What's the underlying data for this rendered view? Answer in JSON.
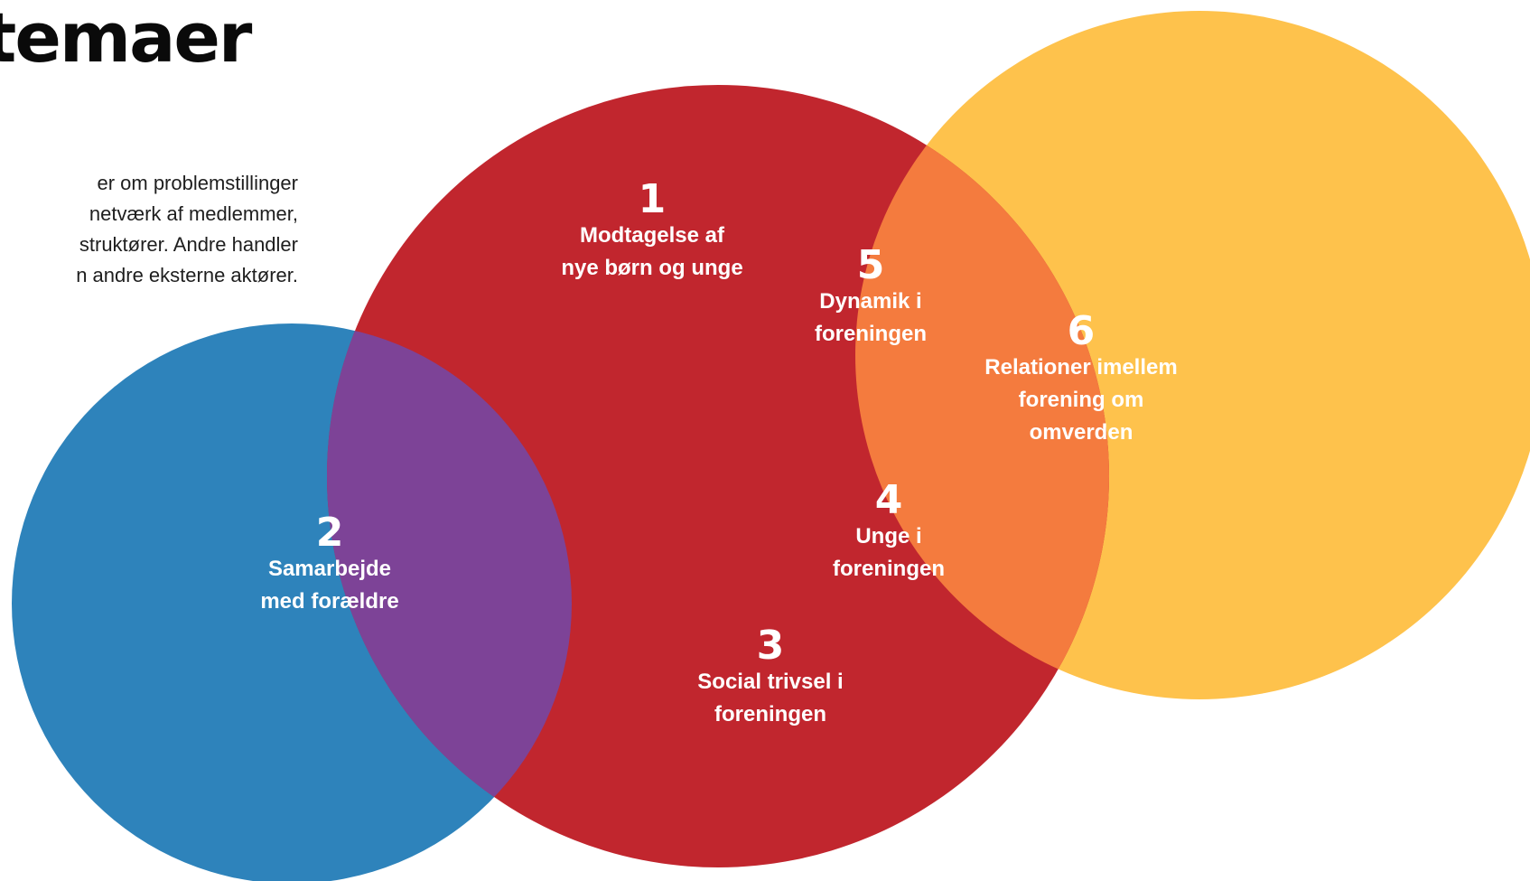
{
  "heading": "temaer",
  "intro_lines": [
    "er om problemstillinger",
    "netværk af medlemmer,",
    "struktører. Andre handler",
    "n andre eksterne aktører."
  ],
  "colors": {
    "blue": "#2E83BB",
    "red": "#C1262E",
    "yellow": "#FEC24C",
    "blue_red_overlap": "#7D4397",
    "red_yellow_overlap": "#F47B3E",
    "text": "#ffffff"
  },
  "topics": [
    {
      "number": "1",
      "label_lines": [
        "Modtagelse af",
        "nye børn og unge"
      ]
    },
    {
      "number": "2",
      "label_lines": [
        "Samarbejde",
        "med forældre"
      ]
    },
    {
      "number": "3",
      "label_lines": [
        "Social trivsel i",
        "foreningen"
      ]
    },
    {
      "number": "4",
      "label_lines": [
        "Unge i",
        "foreningen"
      ]
    },
    {
      "number": "5",
      "label_lines": [
        "Dynamik i",
        "foreningen"
      ]
    },
    {
      "number": "6",
      "label_lines": [
        "Relationer imellem",
        "forening om",
        "omverden"
      ]
    }
  ]
}
